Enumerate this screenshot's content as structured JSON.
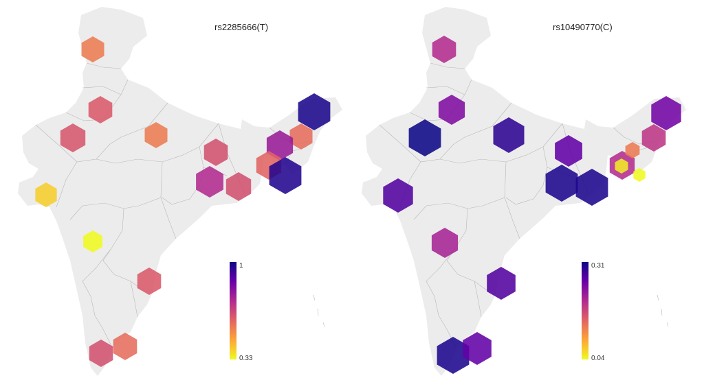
{
  "panels": [
    {
      "title": "rs2285666(T)",
      "colorbar": {
        "max_label": "1",
        "min_label": "0.33",
        "min": 0.33,
        "max": 1
      },
      "markers": [
        {
          "region": "Jammu & Kashmir",
          "value": 0.55
        },
        {
          "region": "Punjab / Haryana",
          "value": 0.62
        },
        {
          "region": "Rajasthan",
          "value": 0.63
        },
        {
          "region": "Uttar Pradesh",
          "value": 0.55
        },
        {
          "region": "Bihar",
          "value": 0.64
        },
        {
          "region": "Jharkhand",
          "value": 0.73
        },
        {
          "region": "West Bengal",
          "value": 0.64
        },
        {
          "region": "Gujarat",
          "value": 0.4
        },
        {
          "region": "Maharashtra",
          "value": 0.33
        },
        {
          "region": "Andhra Pradesh",
          "value": 0.62
        },
        {
          "region": "Karnataka",
          "value": 0.58
        },
        {
          "region": "Kerala",
          "value": 0.64
        },
        {
          "region": "Arunachal Pradesh",
          "value": 0.98
        },
        {
          "region": "Assam",
          "value": 0.58
        },
        {
          "region": "Meghalaya",
          "value": 0.78
        },
        {
          "region": "Tripura",
          "value": 0.6
        },
        {
          "region": "Manipur / Mizoram",
          "value": 0.97
        }
      ]
    },
    {
      "title": "rs10490770(C)",
      "colorbar": {
        "max_label": "0.31",
        "min_label": "0.04",
        "min": 0.04,
        "max": 0.31
      },
      "markers": [
        {
          "region": "Jammu & Kashmir",
          "value": 0.2
        },
        {
          "region": "Punjab / Haryana",
          "value": 0.24
        },
        {
          "region": "Rajasthan",
          "value": 0.31
        },
        {
          "region": "Uttar Pradesh",
          "value": 0.29
        },
        {
          "region": "Bihar",
          "value": 0.26
        },
        {
          "region": "Jharkhand",
          "value": 0.3
        },
        {
          "region": "West Bengal",
          "value": 0.3
        },
        {
          "region": "Gujarat",
          "value": 0.27
        },
        {
          "region": "Maharashtra",
          "value": 0.21
        },
        {
          "region": "Andhra Pradesh",
          "value": 0.27
        },
        {
          "region": "Tamil Nadu",
          "value": 0.3
        },
        {
          "region": "Karnataka / Kerala",
          "value": 0.26
        },
        {
          "region": "Arunachal Pradesh",
          "value": 0.25
        },
        {
          "region": "Assam",
          "value": 0.19
        },
        {
          "region": "Meghalaya",
          "value": 0.2
        },
        {
          "region": "Tripura",
          "value": 0.13
        },
        {
          "region": "Manipur",
          "value": 0.05
        },
        {
          "region": "Mizoram",
          "value": 0.04
        }
      ]
    }
  ],
  "colormap": [
    "#f0f921",
    "#fca636",
    "#e16462",
    "#b12a90",
    "#6a00a8",
    "#0d0887"
  ]
}
